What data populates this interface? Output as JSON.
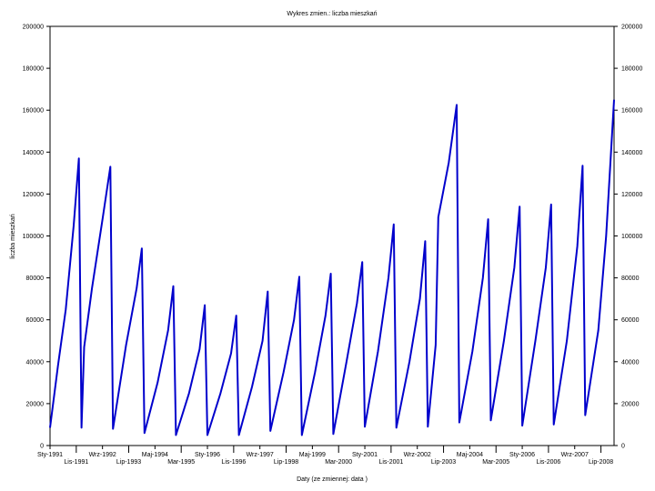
{
  "chart_data": {
    "type": "line",
    "title": "Wykres zmien.: liczba mieszkań",
    "xlabel": "Daty (ze zmiennej: data )",
    "ylabel": "liczba mieszkań",
    "ylim": [
      0,
      200000
    ],
    "yticks": [
      0,
      20000,
      40000,
      60000,
      80000,
      100000,
      120000,
      140000,
      160000,
      180000,
      200000
    ],
    "xlim": [
      "1991-01",
      "2008-12"
    ],
    "xticks": [
      {
        "date": "1991-01",
        "label": "Sty-1991"
      },
      {
        "date": "1991-11",
        "label": "Lis-1991"
      },
      {
        "date": "1992-09",
        "label": "Wrz-1992"
      },
      {
        "date": "1993-07",
        "label": "Lip-1993"
      },
      {
        "date": "1994-05",
        "label": "Maj-1994"
      },
      {
        "date": "1995-03",
        "label": "Mar-1995"
      },
      {
        "date": "1996-01",
        "label": "Sty-1996"
      },
      {
        "date": "1996-11",
        "label": "Lis-1996"
      },
      {
        "date": "1997-09",
        "label": "Wrz-1997"
      },
      {
        "date": "1998-07",
        "label": "Lip-1998"
      },
      {
        "date": "1999-05",
        "label": "Maj-1999"
      },
      {
        "date": "2000-03",
        "label": "Mar-2000"
      },
      {
        "date": "2001-01",
        "label": "Sty-2001"
      },
      {
        "date": "2001-11",
        "label": "Lis-2001"
      },
      {
        "date": "2002-09",
        "label": "Wrz-2002"
      },
      {
        "date": "2003-07",
        "label": "Lip-2003"
      },
      {
        "date": "2004-05",
        "label": "Maj-2004"
      },
      {
        "date": "2005-03",
        "label": "Mar-2005"
      },
      {
        "date": "2006-01",
        "label": "Sty-2006"
      },
      {
        "date": "2006-11",
        "label": "Lis-2006"
      },
      {
        "date": "2007-09",
        "label": "Wrz-2007"
      },
      {
        "date": "2008-07",
        "label": "Lip-2008"
      }
    ],
    "grid": false,
    "legend": "none",
    "series": [
      {
        "color": "#0000cc",
        "points": [
          [
            "1991-01",
            8500
          ],
          [
            "1991-04",
            38000
          ],
          [
            "1991-07",
            65000
          ],
          [
            "1991-10",
            105000
          ],
          [
            "1991-12",
            137000
          ],
          [
            "1992-01",
            8500
          ],
          [
            "1992-02",
            47000
          ],
          [
            "1992-05",
            75000
          ],
          [
            "1992-09",
            108000
          ],
          [
            "1992-12",
            133000
          ],
          [
            "1993-01",
            8000
          ],
          [
            "1993-06",
            48000
          ],
          [
            "1993-10",
            75000
          ],
          [
            "1993-12",
            94000
          ],
          [
            "1994-01",
            6000
          ],
          [
            "1994-06",
            30000
          ],
          [
            "1994-10",
            55000
          ],
          [
            "1994-12",
            76000
          ],
          [
            "1995-01",
            5000
          ],
          [
            "1995-06",
            25000
          ],
          [
            "1995-10",
            46000
          ],
          [
            "1995-12",
            67000
          ],
          [
            "1996-01",
            5000
          ],
          [
            "1996-06",
            25000
          ],
          [
            "1996-10",
            44000
          ],
          [
            "1996-12",
            62000
          ],
          [
            "1997-01",
            5000
          ],
          [
            "1997-06",
            28000
          ],
          [
            "1997-10",
            50000
          ],
          [
            "1997-12",
            73500
          ],
          [
            "1998-01",
            7000
          ],
          [
            "1998-06",
            35000
          ],
          [
            "1998-10",
            60000
          ],
          [
            "1998-12",
            80500
          ],
          [
            "1999-01",
            5000
          ],
          [
            "1999-06",
            35000
          ],
          [
            "1999-10",
            62000
          ],
          [
            "1999-12",
            82000
          ],
          [
            "2000-01",
            5500
          ],
          [
            "2000-06",
            40000
          ],
          [
            "2000-10",
            68000
          ],
          [
            "2000-12",
            87500
          ],
          [
            "2001-01",
            9000
          ],
          [
            "2001-06",
            45000
          ],
          [
            "2001-10",
            80000
          ],
          [
            "2001-12",
            105500
          ],
          [
            "2002-01",
            8500
          ],
          [
            "2002-06",
            40000
          ],
          [
            "2002-10",
            70000
          ],
          [
            "2002-12",
            97500
          ],
          [
            "2003-01",
            9000
          ],
          [
            "2003-04",
            48000
          ],
          [
            "2003-05",
            109000
          ],
          [
            "2003-09",
            135000
          ],
          [
            "2003-12",
            162500
          ],
          [
            "2004-01",
            11000
          ],
          [
            "2004-06",
            45000
          ],
          [
            "2004-10",
            80000
          ],
          [
            "2004-12",
            108000
          ],
          [
            "2005-01",
            12000
          ],
          [
            "2005-06",
            50000
          ],
          [
            "2005-10",
            85000
          ],
          [
            "2005-12",
            114000
          ],
          [
            "2006-01",
            9500
          ],
          [
            "2006-06",
            50000
          ],
          [
            "2006-10",
            85000
          ],
          [
            "2006-12",
            115000
          ],
          [
            "2007-01",
            10000
          ],
          [
            "2007-06",
            50000
          ],
          [
            "2007-10",
            95000
          ],
          [
            "2007-12",
            133500
          ],
          [
            "2008-01",
            14500
          ],
          [
            "2008-06",
            55000
          ],
          [
            "2008-09",
            100000
          ],
          [
            "2008-12",
            165000
          ]
        ]
      }
    ]
  }
}
